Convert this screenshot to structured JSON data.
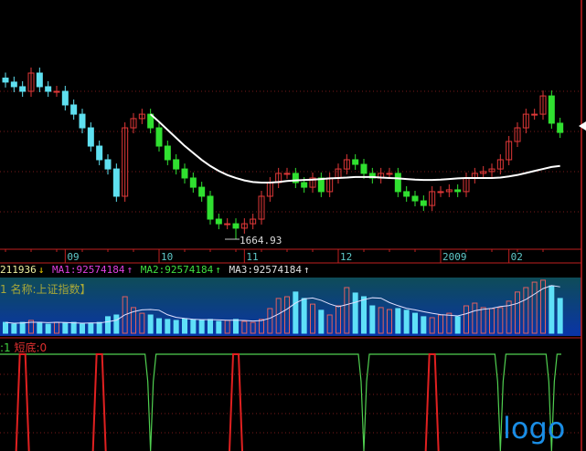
{
  "colors": {
    "up": "#e03838",
    "down_early": "#5fe0f0",
    "down": "#30e030",
    "ma_line": "#ffffff",
    "grid": "#7a1a1a",
    "axis_text": "#5fc8c8"
  },
  "info_row": {
    "volume": "211936",
    "volume_arrow": "↓",
    "ma1": "MA1:92574184",
    "ma1_arrow": "↑",
    "ma2": "MA2:92574184",
    "ma2_arrow": "↑",
    "ma3": "MA3:92574184",
    "ma3_arrow": "↑"
  },
  "volume_legend": "1 名称:上证指数】",
  "signal_legend": {
    "first": ":1",
    "second": "短底:0"
  },
  "logo": "logo",
  "chart_data": [
    {
      "type": "candlestick",
      "x_tick_labels": [
        {
          "label": "09",
          "index": 7
        },
        {
          "label": "10",
          "index": 18
        },
        {
          "label": "11",
          "index": 28
        },
        {
          "label": "12",
          "index": 39
        },
        {
          "label": "2009",
          "index": 51
        },
        {
          "label": "02",
          "index": 59
        }
      ],
      "close": [
        2448,
        2425,
        2402,
        2493,
        2425,
        2402,
        2402,
        2334,
        2288,
        2220,
        2129,
        2061,
        2015,
        1879,
        2220,
        2266,
        2288,
        2220,
        2129,
        2061,
        2015,
        1970,
        1924,
        1879,
        1765,
        1742,
        1742,
        1720,
        1742,
        1765,
        1879,
        1947,
        1993,
        1993,
        1947,
        1924,
        1970,
        1902,
        1970,
        2015,
        2061,
        2038,
        1993,
        1970,
        1993,
        1993,
        1902,
        1879,
        1856,
        1833,
        1902,
        1902,
        1911,
        1902,
        1970,
        1993,
        2002,
        2015,
        2061,
        2152,
        2220,
        2288,
        2288,
        2379,
        2243,
        2197
      ],
      "ma": [
        null,
        null,
        null,
        null,
        null,
        null,
        null,
        null,
        null,
        null,
        null,
        null,
        null,
        null,
        null,
        null,
        null,
        2288,
        2250,
        2210,
        2170,
        2130,
        2095,
        2060,
        2030,
        2005,
        1985,
        1970,
        1958,
        1950,
        1947,
        1947,
        1950,
        1955,
        1958,
        1960,
        1962,
        1965,
        1968,
        1970,
        1972,
        1975,
        1975,
        1975,
        1972,
        1970,
        1968,
        1965,
        1962,
        1960,
        1960,
        1962,
        1965,
        1968,
        1970,
        1970,
        1970,
        1970,
        1972,
        1978,
        1985,
        1995,
        2005,
        2015,
        2025,
        2030
      ],
      "annotation": {
        "label": "1664.93",
        "index": 27,
        "value": 1664.93
      }
    },
    {
      "type": "bar",
      "volume": [
        44000000,
        37000000,
        44000000,
        52000000,
        44000000,
        37000000,
        44000000,
        41000000,
        44000000,
        37000000,
        41000000,
        44000000,
        67000000,
        74000000,
        148000000,
        104000000,
        81000000,
        74000000,
        59000000,
        56000000,
        52000000,
        59000000,
        56000000,
        52000000,
        56000000,
        48000000,
        52000000,
        56000000,
        48000000,
        44000000,
        56000000,
        100000000,
        141000000,
        148000000,
        167000000,
        141000000,
        118000000,
        93000000,
        74000000,
        111000000,
        185000000,
        163000000,
        148000000,
        111000000,
        104000000,
        96000000,
        100000000,
        93000000,
        81000000,
        67000000,
        63000000,
        74000000,
        81000000,
        67000000,
        111000000,
        122000000,
        104000000,
        100000000,
        104000000,
        130000000,
        167000000,
        185000000,
        207000000,
        215000000,
        192000000,
        141000000
      ]
    },
    {
      "type": "signal",
      "green_dip_indices": [
        17,
        42,
        58,
        64
      ],
      "red_spike_indices": [
        2,
        11,
        27,
        50
      ]
    }
  ]
}
